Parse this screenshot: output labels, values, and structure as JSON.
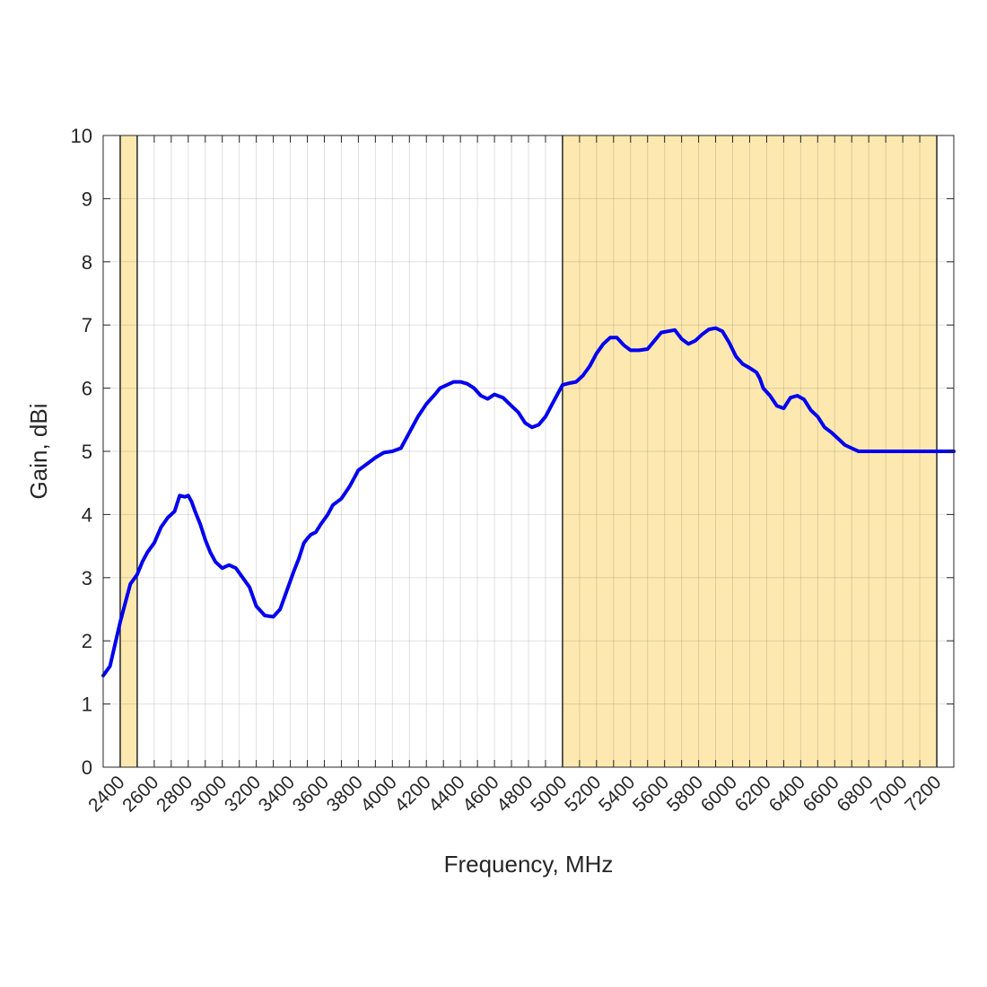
{
  "chart_data": {
    "type": "line",
    "xlabel": "Frequency, MHz",
    "ylabel": "Gain, dBi",
    "xlim": [
      2300,
      7300
    ],
    "ylim": [
      0,
      10
    ],
    "x_ticks": [
      2400,
      2500,
      2600,
      2700,
      2800,
      2900,
      3000,
      3100,
      3200,
      3300,
      3400,
      3500,
      3600,
      3700,
      3800,
      3900,
      4000,
      4100,
      4200,
      4300,
      4400,
      4500,
      4600,
      4700,
      4800,
      4900,
      5000,
      5100,
      5200,
      5300,
      5400,
      5500,
      5600,
      5700,
      5800,
      5900,
      6000,
      6100,
      6200,
      6300,
      6400,
      6500,
      6600,
      6700,
      6800,
      6900,
      7000,
      7100,
      7200
    ],
    "x_tick_labels": [
      "2400",
      "",
      "2600",
      "",
      "2800",
      "",
      "3000",
      "",
      "3200",
      "",
      "3400",
      "",
      "3600",
      "",
      "3800",
      "",
      "4000",
      "",
      "4200",
      "",
      "4400",
      "",
      "4600",
      "",
      "4800",
      "",
      "5000",
      "",
      "5200",
      "",
      "5400",
      "",
      "5600",
      "",
      "5800",
      "",
      "6000",
      "",
      "6200",
      "",
      "6400",
      "",
      "6600",
      "",
      "6800",
      "",
      "7000",
      "",
      "7200"
    ],
    "y_ticks": [
      0,
      1,
      2,
      3,
      4,
      5,
      6,
      7,
      8,
      9,
      10
    ],
    "y_tick_labels": [
      "0",
      "1",
      "2",
      "3",
      "4",
      "5",
      "6",
      "7",
      "8",
      "9",
      "10"
    ],
    "grid": true,
    "highlight_bands": [
      {
        "start": 2400,
        "end": 2500,
        "color": "#fde8b0"
      },
      {
        "start": 5000,
        "end": 7200,
        "color": "#fde8b0"
      }
    ],
    "series": [
      {
        "color": "#0000ee",
        "x": [
          2300,
          2340,
          2370,
          2400,
          2430,
          2460,
          2500,
          2530,
          2560,
          2600,
          2640,
          2680,
          2720,
          2750,
          2780,
          2800,
          2820,
          2840,
          2870,
          2900,
          2930,
          2960,
          3000,
          3040,
          3080,
          3120,
          3160,
          3200,
          3250,
          3300,
          3340,
          3380,
          3420,
          3450,
          3480,
          3500,
          3520,
          3550,
          3580,
          3620,
          3650,
          3700,
          3750,
          3800,
          3850,
          3900,
          3950,
          4000,
          4050,
          4100,
          4150,
          4200,
          4250,
          4280,
          4320,
          4360,
          4400,
          4440,
          4480,
          4520,
          4560,
          4600,
          4650,
          4700,
          4740,
          4780,
          4820,
          4860,
          4900,
          4940,
          4980,
          5000,
          5040,
          5080,
          5120,
          5160,
          5200,
          5240,
          5280,
          5320,
          5360,
          5400,
          5450,
          5500,
          5540,
          5580,
          5620,
          5660,
          5700,
          5740,
          5780,
          5820,
          5860,
          5900,
          5940,
          5980,
          6020,
          6060,
          6100,
          6140,
          6160,
          6180,
          6220,
          6260,
          6300,
          6340,
          6380,
          6420,
          6460,
          6500,
          6540,
          6580,
          6620,
          6660,
          6700,
          6740,
          6780,
          6820,
          6860,
          6900,
          6940,
          6980,
          7020,
          7060,
          7100,
          7140,
          7180,
          7220,
          7260,
          7300
        ],
        "y": [
          1.45,
          1.6,
          1.95,
          2.3,
          2.6,
          2.9,
          3.05,
          3.25,
          3.4,
          3.55,
          3.8,
          3.95,
          4.05,
          4.3,
          4.28,
          4.3,
          4.2,
          4.05,
          3.85,
          3.6,
          3.4,
          3.25,
          3.15,
          3.2,
          3.15,
          3.0,
          2.85,
          2.55,
          2.4,
          2.38,
          2.5,
          2.8,
          3.1,
          3.3,
          3.55,
          3.62,
          3.68,
          3.72,
          3.85,
          4.0,
          4.15,
          4.25,
          4.45,
          4.7,
          4.8,
          4.9,
          4.98,
          5.0,
          5.05,
          5.3,
          5.55,
          5.75,
          5.9,
          6.0,
          6.05,
          6.1,
          6.1,
          6.07,
          6.0,
          5.88,
          5.83,
          5.9,
          5.85,
          5.72,
          5.62,
          5.45,
          5.38,
          5.42,
          5.55,
          5.75,
          5.95,
          6.05,
          6.08,
          6.1,
          6.2,
          6.35,
          6.55,
          6.7,
          6.8,
          6.8,
          6.68,
          6.6,
          6.6,
          6.62,
          6.75,
          6.88,
          6.9,
          6.92,
          6.78,
          6.7,
          6.75,
          6.85,
          6.93,
          6.95,
          6.9,
          6.72,
          6.5,
          6.38,
          6.32,
          6.25,
          6.15,
          6.0,
          5.88,
          5.72,
          5.68,
          5.85,
          5.88,
          5.82,
          5.65,
          5.55,
          5.38,
          5.3,
          5.2,
          5.1,
          5.05,
          5.0,
          5.0,
          5.0,
          5.0,
          5.0,
          5.0,
          5.0,
          5.0,
          5.0,
          5.0,
          5.0,
          5.0,
          5.0,
          5.0,
          5.0
        ]
      }
    ]
  }
}
